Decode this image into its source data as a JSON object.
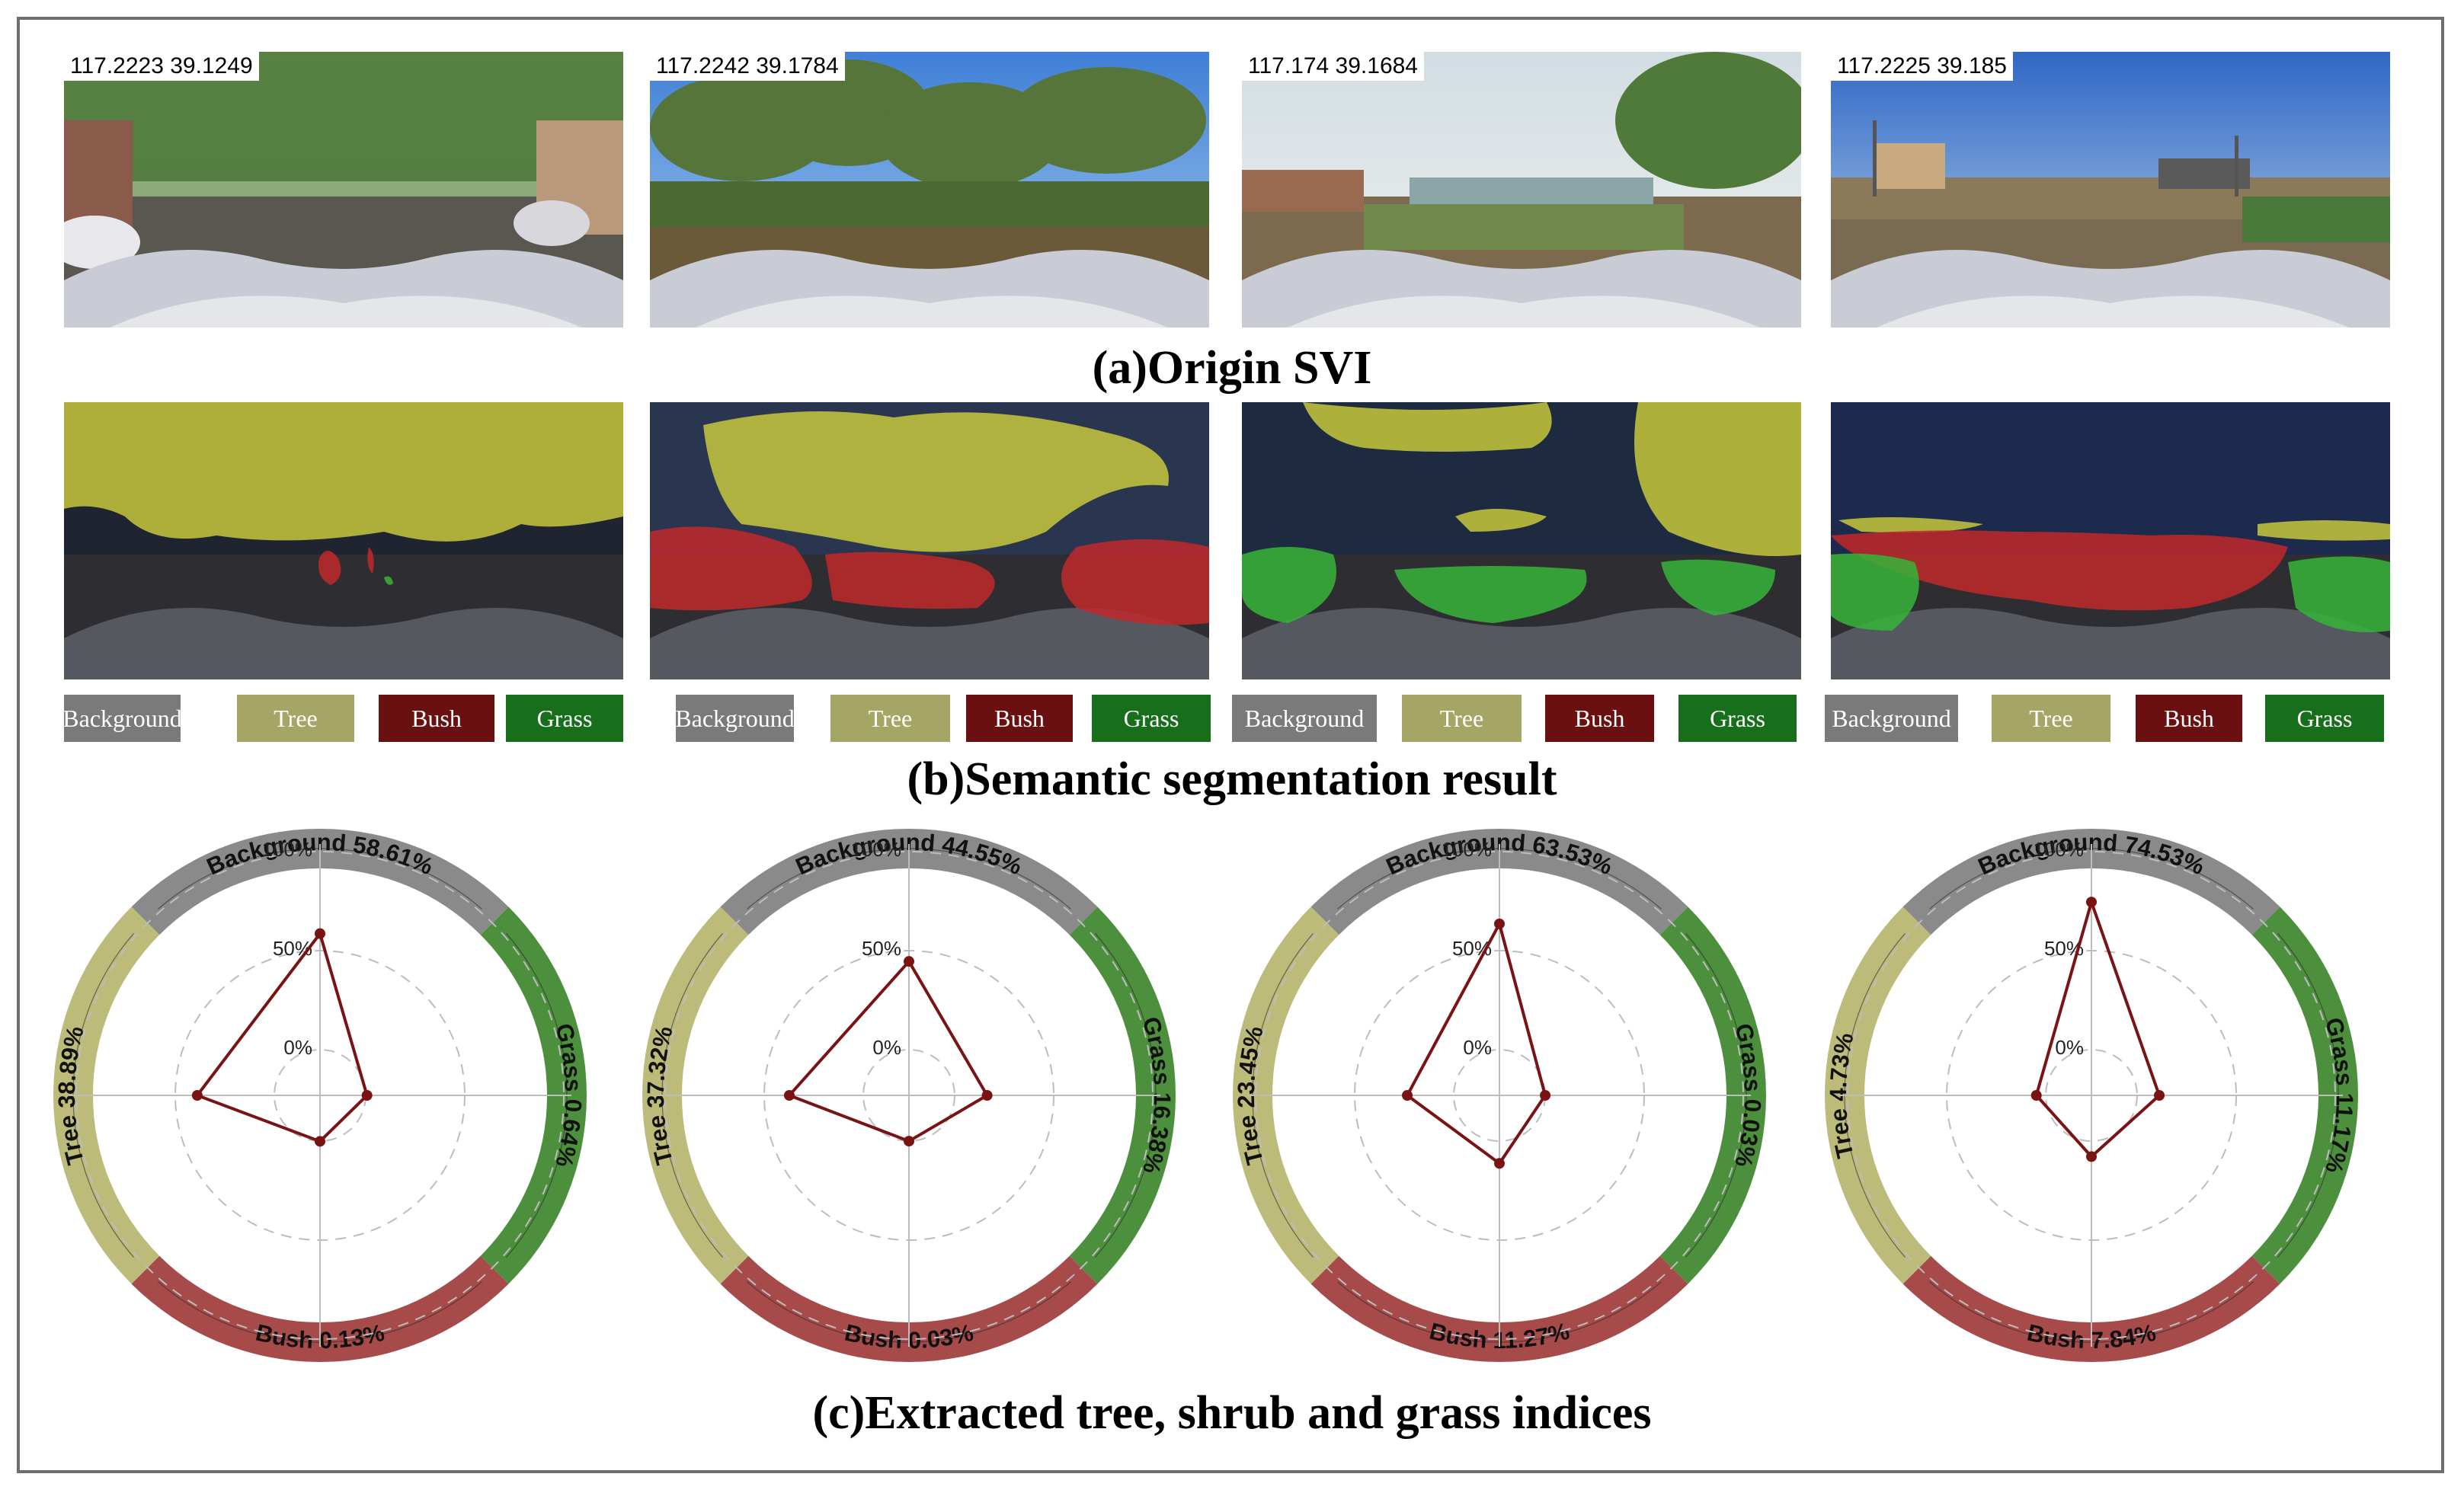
{
  "colors": {
    "background": "#8a8a8a",
    "tree": "#bdbb7a",
    "bush": "#a64a4a",
    "grass": "#4c8f3c",
    "seg_tree": "#c8c83c",
    "seg_bush": "#c0282a",
    "seg_grass": "#36b43a",
    "line": "#7a1414",
    "legend_background": "#7a7a7a",
    "legend_tree": "#a5a565",
    "legend_bush": "#6a1010",
    "legend_grass": "#176f1b"
  },
  "captions": {
    "a": "(a)Origin SVI",
    "b": "(b)Semantic segmentation result",
    "c": "(c)Extracted tree, shrub and grass indices"
  },
  "legend": [
    "Background",
    "Tree",
    "Bush",
    "Grass"
  ],
  "radar_ticks": [
    "100%",
    "50%",
    "0%"
  ],
  "panels": [
    {
      "coord": "117.2223  39.1249",
      "scene": "street",
      "labels": {
        "background": "Background  58.61%",
        "grass": "Grass  0.64%",
        "bush": "Bush  0.13%",
        "tree": "Tree  38.89%"
      }
    },
    {
      "coord": "117.2242  39.1784",
      "scene": "woodland",
      "labels": {
        "background": "Background  44.55%",
        "grass": "Grass  16.38%",
        "bush": "Bush  0.03%",
        "tree": "Tree  37.32%"
      }
    },
    {
      "coord": "117.174  39.1684",
      "scene": "river",
      "labels": {
        "background": "Background  63.53%",
        "grass": "Grass  0.03%",
        "bush": "Bush  11.27%",
        "tree": "Tree  23.45%"
      }
    },
    {
      "coord": "117.2225  39.185",
      "scene": "rural",
      "labels": {
        "background": "Background  74.53%",
        "grass": "Grass  11.17%",
        "bush": "Bush  7.84%",
        "tree": "Tree  4.73%"
      }
    }
  ],
  "chart_data": [
    {
      "type": "radar",
      "axes": [
        "Background",
        "Grass",
        "Bush",
        "Tree"
      ],
      "values": [
        58.61,
        0.64,
        0.13,
        38.89
      ],
      "rlim": [
        0,
        100
      ]
    },
    {
      "type": "radar",
      "axes": [
        "Background",
        "Grass",
        "Bush",
        "Tree"
      ],
      "values": [
        44.55,
        16.38,
        0.03,
        37.32
      ],
      "rlim": [
        0,
        100
      ]
    },
    {
      "type": "radar",
      "axes": [
        "Background",
        "Grass",
        "Bush",
        "Tree"
      ],
      "values": [
        63.53,
        0.03,
        11.27,
        23.45
      ],
      "rlim": [
        0,
        100
      ]
    },
    {
      "type": "radar",
      "axes": [
        "Background",
        "Grass",
        "Bush",
        "Tree"
      ],
      "values": [
        74.53,
        11.17,
        7.84,
        4.73
      ],
      "rlim": [
        0,
        100
      ]
    }
  ]
}
